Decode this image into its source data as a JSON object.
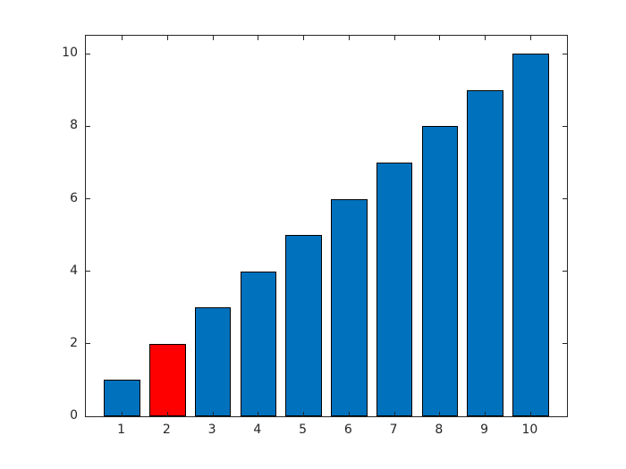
{
  "figure": {
    "background": "#ffffff"
  },
  "chart_data": {
    "type": "bar",
    "title": "",
    "xlabel": "",
    "ylabel": "",
    "categories": [
      1,
      2,
      3,
      4,
      5,
      6,
      7,
      8,
      9,
      10
    ],
    "values": [
      1,
      2,
      3,
      4,
      5,
      6,
      7,
      8,
      9,
      10
    ],
    "highlighted_category": 2,
    "bar_color": "#0072BD",
    "highlight_color": "#FF0000",
    "edge_color": "#000000",
    "axis_color": "#262626",
    "bar_width_units": 0.8,
    "xlim": [
      0.2,
      10.8
    ],
    "ylim": [
      0,
      10.5
    ],
    "xticks": [
      1,
      2,
      3,
      4,
      5,
      6,
      7,
      8,
      9,
      10
    ],
    "yticks": [
      0,
      2,
      4,
      6,
      8,
      10
    ],
    "xtick_labels": [
      "1",
      "2",
      "3",
      "4",
      "5",
      "6",
      "7",
      "8",
      "9",
      "10"
    ],
    "ytick_labels": [
      "0",
      "2",
      "4",
      "6",
      "8",
      "10"
    ],
    "grid": false,
    "legend": null,
    "tick_direction": "in",
    "box": true
  }
}
